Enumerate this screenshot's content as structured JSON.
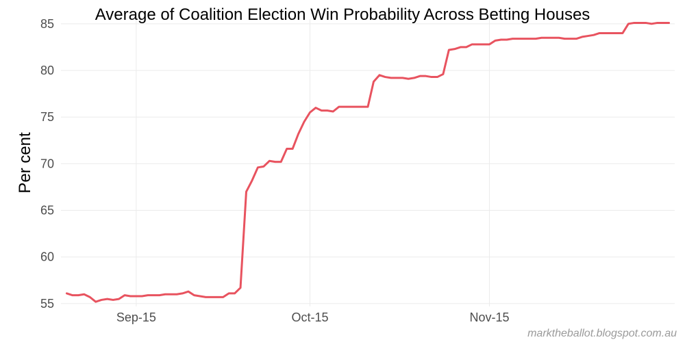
{
  "chart_data": {
    "type": "line",
    "title": "Average of Coalition Election Win Probability Across Betting Houses",
    "xlabel": "",
    "ylabel": "Per cent",
    "ylim": [
      54.7,
      85.5
    ],
    "xlim": [
      "2015-08-19",
      "2015-12-03"
    ],
    "grid": true,
    "y_ticks": [
      55,
      60,
      65,
      70,
      75,
      80,
      85
    ],
    "x_ticks": [
      {
        "date": "2015-09-01",
        "label": "Sep-15"
      },
      {
        "date": "2015-10-01",
        "label": "Oct-15"
      },
      {
        "date": "2015-11-01",
        "label": "Nov-15"
      }
    ],
    "series": [
      {
        "color": "#e8535f",
        "points": [
          [
            "2015-08-20",
            56.1
          ],
          [
            "2015-08-21",
            55.9
          ],
          [
            "2015-08-22",
            55.9
          ],
          [
            "2015-08-23",
            56.0
          ],
          [
            "2015-08-24",
            55.7
          ],
          [
            "2015-08-25",
            55.2
          ],
          [
            "2015-08-26",
            55.4
          ],
          [
            "2015-08-27",
            55.5
          ],
          [
            "2015-08-28",
            55.4
          ],
          [
            "2015-08-29",
            55.5
          ],
          [
            "2015-08-30",
            55.9
          ],
          [
            "2015-08-31",
            55.8
          ],
          [
            "2015-09-01",
            55.8
          ],
          [
            "2015-09-02",
            55.8
          ],
          [
            "2015-09-03",
            55.9
          ],
          [
            "2015-09-04",
            55.9
          ],
          [
            "2015-09-05",
            55.9
          ],
          [
            "2015-09-06",
            56.0
          ],
          [
            "2015-09-07",
            56.0
          ],
          [
            "2015-09-08",
            56.0
          ],
          [
            "2015-09-09",
            56.1
          ],
          [
            "2015-09-10",
            56.3
          ],
          [
            "2015-09-11",
            55.9
          ],
          [
            "2015-09-12",
            55.8
          ],
          [
            "2015-09-13",
            55.7
          ],
          [
            "2015-09-14",
            55.7
          ],
          [
            "2015-09-15",
            55.7
          ],
          [
            "2015-09-16",
            55.7
          ],
          [
            "2015-09-17",
            56.1
          ],
          [
            "2015-09-18",
            56.1
          ],
          [
            "2015-09-19",
            56.7
          ],
          [
            "2015-09-20",
            67.0
          ],
          [
            "2015-09-21",
            68.2
          ],
          [
            "2015-09-22",
            69.6
          ],
          [
            "2015-09-23",
            69.7
          ],
          [
            "2015-09-24",
            70.3
          ],
          [
            "2015-09-25",
            70.2
          ],
          [
            "2015-09-26",
            70.2
          ],
          [
            "2015-09-27",
            71.6
          ],
          [
            "2015-09-28",
            71.6
          ],
          [
            "2015-09-29",
            73.2
          ],
          [
            "2015-09-30",
            74.5
          ],
          [
            "2015-10-01",
            75.5
          ],
          [
            "2015-10-02",
            76.0
          ],
          [
            "2015-10-03",
            75.7
          ],
          [
            "2015-10-04",
            75.7
          ],
          [
            "2015-10-05",
            75.6
          ],
          [
            "2015-10-06",
            76.1
          ],
          [
            "2015-10-07",
            76.1
          ],
          [
            "2015-10-08",
            76.1
          ],
          [
            "2015-10-09",
            76.1
          ],
          [
            "2015-10-10",
            76.1
          ],
          [
            "2015-10-11",
            76.1
          ],
          [
            "2015-10-12",
            78.8
          ],
          [
            "2015-10-13",
            79.5
          ],
          [
            "2015-10-14",
            79.3
          ],
          [
            "2015-10-15",
            79.2
          ],
          [
            "2015-10-16",
            79.2
          ],
          [
            "2015-10-17",
            79.2
          ],
          [
            "2015-10-18",
            79.1
          ],
          [
            "2015-10-19",
            79.2
          ],
          [
            "2015-10-20",
            79.4
          ],
          [
            "2015-10-21",
            79.4
          ],
          [
            "2015-10-22",
            79.3
          ],
          [
            "2015-10-23",
            79.3
          ],
          [
            "2015-10-24",
            79.6
          ],
          [
            "2015-10-25",
            82.2
          ],
          [
            "2015-10-26",
            82.3
          ],
          [
            "2015-10-27",
            82.5
          ],
          [
            "2015-10-28",
            82.5
          ],
          [
            "2015-10-29",
            82.8
          ],
          [
            "2015-10-30",
            82.8
          ],
          [
            "2015-10-31",
            82.8
          ],
          [
            "2015-11-01",
            82.8
          ],
          [
            "2015-11-02",
            83.2
          ],
          [
            "2015-11-03",
            83.3
          ],
          [
            "2015-11-04",
            83.3
          ],
          [
            "2015-11-05",
            83.4
          ],
          [
            "2015-11-06",
            83.4
          ],
          [
            "2015-11-07",
            83.4
          ],
          [
            "2015-11-08",
            83.4
          ],
          [
            "2015-11-09",
            83.4
          ],
          [
            "2015-11-10",
            83.5
          ],
          [
            "2015-11-11",
            83.5
          ],
          [
            "2015-11-12",
            83.5
          ],
          [
            "2015-11-13",
            83.5
          ],
          [
            "2015-11-14",
            83.4
          ],
          [
            "2015-11-15",
            83.4
          ],
          [
            "2015-11-16",
            83.4
          ],
          [
            "2015-11-17",
            83.6
          ],
          [
            "2015-11-18",
            83.7
          ],
          [
            "2015-11-19",
            83.8
          ],
          [
            "2015-11-20",
            84.0
          ],
          [
            "2015-11-21",
            84.0
          ],
          [
            "2015-11-22",
            84.0
          ],
          [
            "2015-11-23",
            84.0
          ],
          [
            "2015-11-24",
            84.0
          ],
          [
            "2015-11-25",
            85.0
          ],
          [
            "2015-11-26",
            85.1
          ],
          [
            "2015-11-27",
            85.1
          ],
          [
            "2015-11-28",
            85.1
          ],
          [
            "2015-11-29",
            85.0
          ],
          [
            "2015-11-30",
            85.1
          ],
          [
            "2015-12-01",
            85.1
          ],
          [
            "2015-12-02",
            85.1
          ]
        ]
      }
    ]
  },
  "caption": "marktheballot.blogspot.com.au"
}
